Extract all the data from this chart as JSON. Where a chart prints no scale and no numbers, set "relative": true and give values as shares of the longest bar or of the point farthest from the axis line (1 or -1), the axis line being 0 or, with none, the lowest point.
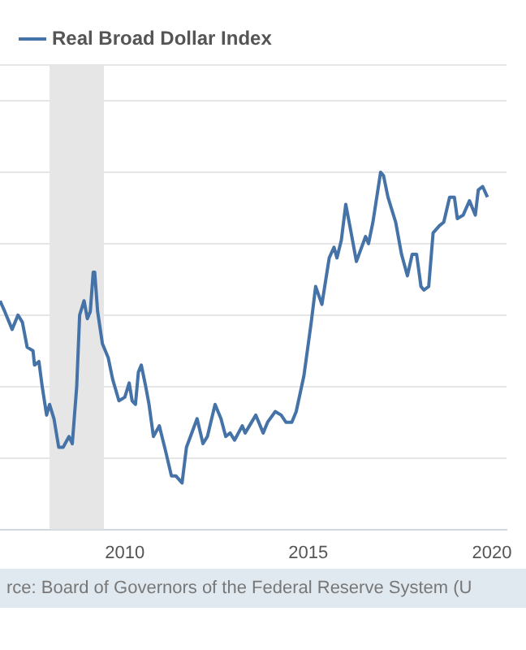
{
  "chart_data": {
    "type": "line",
    "relative": true,
    "x": [
      2006.6,
      2006.73,
      2006.93,
      2007.09,
      2007.21,
      2007.34,
      2007.5,
      2007.54,
      2007.66,
      2007.75,
      2007.87,
      2007.95,
      2008.07,
      2008.2,
      2008.32,
      2008.48,
      2008.57,
      2008.69,
      2008.77,
      2008.89,
      2008.98,
      2009.06,
      2009.14,
      2009.18,
      2009.26,
      2009.39,
      2009.55,
      2009.67,
      2009.84,
      2010.0,
      2010.12,
      2010.2,
      2010.29,
      2010.37,
      2010.45,
      2010.57,
      2010.66,
      2010.78,
      2010.94,
      2011.11,
      2011.27,
      2011.39,
      2011.56,
      2011.68,
      2011.97,
      2012.13,
      2012.25,
      2012.46,
      2012.62,
      2012.75,
      2012.87,
      2012.99,
      2013.2,
      2013.28,
      2013.57,
      2013.77,
      2013.89,
      2014.1,
      2014.26,
      2014.39,
      2014.55,
      2014.67,
      2014.88,
      2015.08,
      2015.2,
      2015.37,
      2015.57,
      2015.7,
      2015.78,
      2015.9,
      2016.02,
      2016.15,
      2016.31,
      2016.56,
      2016.64,
      2016.76,
      2016.97,
      2017.05,
      2017.17,
      2017.38,
      2017.54,
      2017.7,
      2017.83,
      2017.95,
      2018.07,
      2018.15,
      2018.28,
      2018.4,
      2018.57,
      2018.69,
      2018.85,
      2018.98,
      2019.06,
      2019.22,
      2019.39,
      2019.55,
      2019.63,
      2019.75,
      2019.88
    ],
    "series": [
      {
        "name": "Real Broad Dollar Index",
        "color": "#4572a7",
        "values": [
          0.64,
          0.61,
          0.56,
          0.6,
          0.58,
          0.51,
          0.5,
          0.46,
          0.47,
          0.4,
          0.32,
          0.35,
          0.31,
          0.23,
          0.23,
          0.26,
          0.24,
          0.4,
          0.6,
          0.64,
          0.59,
          0.61,
          0.72,
          0.72,
          0.61,
          0.52,
          0.48,
          0.42,
          0.36,
          0.37,
          0.41,
          0.36,
          0.35,
          0.44,
          0.46,
          0.4,
          0.35,
          0.26,
          0.29,
          0.22,
          0.15,
          0.15,
          0.13,
          0.23,
          0.31,
          0.24,
          0.26,
          0.35,
          0.31,
          0.26,
          0.27,
          0.25,
          0.29,
          0.27,
          0.32,
          0.27,
          0.3,
          0.33,
          0.32,
          0.3,
          0.3,
          0.33,
          0.43,
          0.58,
          0.68,
          0.63,
          0.76,
          0.79,
          0.76,
          0.81,
          0.91,
          0.84,
          0.75,
          0.82,
          0.8,
          0.86,
          1.0,
          0.99,
          0.93,
          0.86,
          0.77,
          0.71,
          0.77,
          0.77,
          0.68,
          0.67,
          0.68,
          0.83,
          0.85,
          0.86,
          0.93,
          0.93,
          0.87,
          0.88,
          0.92,
          0.88,
          0.95,
          0.96,
          0.93
        ]
      }
    ],
    "xlim": [
      2006.6,
      2020.4
    ],
    "xticks": [
      2010,
      2015,
      2020
    ],
    "bands": [
      {
        "axis": "x",
        "from": 2007.95,
        "to": 2009.43,
        "color": "#e6e6e6"
      }
    ],
    "grid": "y",
    "legend": "top left",
    "marker": "none",
    "line_style": "solid",
    "annotations": [
      "rce: Board of Governors of the Federal Reserve System (U"
    ]
  }
}
